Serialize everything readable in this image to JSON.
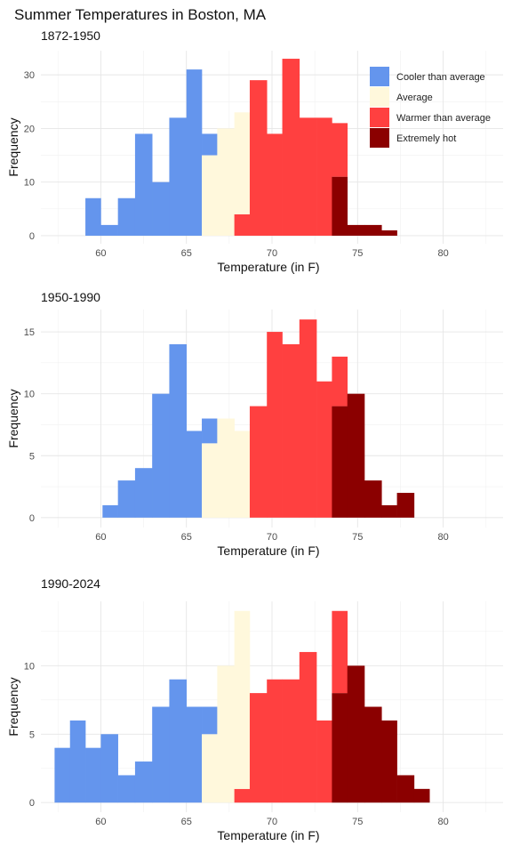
{
  "title": "Summer Temperatures in Boston, MA",
  "colors": {
    "cooler": "#6495ED",
    "average": "#FFF8DC",
    "warmer": "#FF4040",
    "hot": "#8B0000"
  },
  "chart_data": [
    {
      "type": "histogram",
      "subtitle": "1872-1950",
      "xlabel": "Temperature (in F)",
      "ylabel": "Frequency",
      "xlim": [
        56.5,
        83.5
      ],
      "ylim": [
        -1.5,
        34.5
      ],
      "xticks": [
        60,
        65,
        70,
        75,
        80
      ],
      "yticks": [
        0,
        10,
        20,
        30
      ],
      "grid": true,
      "legend": {
        "position": "top-right",
        "entries": [
          {
            "label": "Cooler than average",
            "category": "cooler"
          },
          {
            "label": "Average",
            "category": "average"
          },
          {
            "label": "Warmer than average",
            "category": "warmer"
          },
          {
            "label": "Extremely hot",
            "category": "hot"
          }
        ]
      },
      "bars": [
        {
          "x0": 59.1,
          "x1": 60.0,
          "count": 7,
          "category": "cooler"
        },
        {
          "x0": 60.0,
          "x1": 61.0,
          "count": 2,
          "category": "cooler"
        },
        {
          "x0": 61.0,
          "x1": 62.0,
          "count": 7,
          "category": "cooler"
        },
        {
          "x0": 62.0,
          "x1": 63.0,
          "count": 19,
          "category": "cooler"
        },
        {
          "x0": 63.0,
          "x1": 64.0,
          "count": 10,
          "category": "cooler"
        },
        {
          "x0": 64.0,
          "x1": 65.0,
          "count": 22,
          "category": "cooler"
        },
        {
          "x0": 65.0,
          "x1": 65.9,
          "count": 31,
          "category": "cooler"
        },
        {
          "x0": 65.9,
          "x1": 66.8,
          "count": 15,
          "category": "average"
        },
        {
          "x0": 65.9,
          "x1": 66.8,
          "count": 4,
          "base": 15,
          "category": "cooler"
        },
        {
          "x0": 66.8,
          "x1": 67.8,
          "count": 20,
          "category": "average"
        },
        {
          "x0": 67.8,
          "x1": 68.7,
          "count": 4,
          "category": "warmer"
        },
        {
          "x0": 67.8,
          "x1": 68.7,
          "count": 19,
          "base": 4,
          "category": "average"
        },
        {
          "x0": 68.7,
          "x1": 69.7,
          "count": 29,
          "category": "warmer"
        },
        {
          "x0": 69.7,
          "x1": 70.6,
          "count": 19,
          "category": "warmer"
        },
        {
          "x0": 70.6,
          "x1": 71.6,
          "count": 33,
          "category": "warmer"
        },
        {
          "x0": 71.6,
          "x1": 72.6,
          "count": 22,
          "category": "warmer"
        },
        {
          "x0": 72.6,
          "x1": 73.5,
          "count": 22,
          "category": "warmer"
        },
        {
          "x0": 73.5,
          "x1": 74.4,
          "count": 11,
          "category": "hot"
        },
        {
          "x0": 73.5,
          "x1": 74.4,
          "count": 10,
          "base": 11,
          "category": "warmer"
        },
        {
          "x0": 74.4,
          "x1": 75.4,
          "count": 2,
          "category": "hot"
        },
        {
          "x0": 75.4,
          "x1": 76.4,
          "count": 2,
          "category": "hot"
        },
        {
          "x0": 76.4,
          "x1": 77.3,
          "count": 1,
          "category": "hot"
        }
      ]
    },
    {
      "type": "histogram",
      "subtitle": "1950-1990",
      "xlabel": "Temperature (in F)",
      "ylabel": "Frequency",
      "xlim": [
        56.5,
        83.5
      ],
      "ylim": [
        -0.8,
        16.8
      ],
      "xticks": [
        60,
        65,
        70,
        75,
        80
      ],
      "yticks": [
        0,
        5,
        10,
        15
      ],
      "grid": true,
      "bars": [
        {
          "x0": 60.1,
          "x1": 61.0,
          "count": 1,
          "category": "cooler"
        },
        {
          "x0": 61.0,
          "x1": 62.0,
          "count": 3,
          "category": "cooler"
        },
        {
          "x0": 62.0,
          "x1": 63.0,
          "count": 4,
          "category": "cooler"
        },
        {
          "x0": 63.0,
          "x1": 64.0,
          "count": 10,
          "category": "cooler"
        },
        {
          "x0": 64.0,
          "x1": 65.0,
          "count": 14,
          "category": "cooler"
        },
        {
          "x0": 65.0,
          "x1": 65.9,
          "count": 7,
          "category": "cooler"
        },
        {
          "x0": 65.9,
          "x1": 66.8,
          "count": 6,
          "category": "average"
        },
        {
          "x0": 65.9,
          "x1": 66.8,
          "count": 2,
          "base": 6,
          "category": "cooler"
        },
        {
          "x0": 66.8,
          "x1": 67.8,
          "count": 8,
          "category": "average"
        },
        {
          "x0": 67.8,
          "x1": 68.7,
          "count": 7,
          "category": "average"
        },
        {
          "x0": 68.7,
          "x1": 69.7,
          "count": 9,
          "category": "warmer"
        },
        {
          "x0": 69.7,
          "x1": 70.6,
          "count": 15,
          "category": "warmer"
        },
        {
          "x0": 70.6,
          "x1": 71.6,
          "count": 14,
          "category": "warmer"
        },
        {
          "x0": 71.6,
          "x1": 72.6,
          "count": 16,
          "category": "warmer"
        },
        {
          "x0": 72.6,
          "x1": 73.5,
          "count": 11,
          "category": "warmer"
        },
        {
          "x0": 73.5,
          "x1": 74.4,
          "count": 9,
          "category": "hot"
        },
        {
          "x0": 73.5,
          "x1": 74.4,
          "count": 4,
          "base": 9,
          "category": "warmer"
        },
        {
          "x0": 74.4,
          "x1": 75.4,
          "count": 10,
          "category": "hot"
        },
        {
          "x0": 75.4,
          "x1": 76.4,
          "count": 3,
          "category": "hot"
        },
        {
          "x0": 76.4,
          "x1": 77.3,
          "count": 1,
          "category": "hot"
        },
        {
          "x0": 77.3,
          "x1": 78.3,
          "count": 2,
          "category": "hot"
        }
      ]
    },
    {
      "type": "histogram",
      "subtitle": "1990-2024",
      "xlabel": "Temperature (in F)",
      "ylabel": "Frequency",
      "xlim": [
        56.5,
        83.5
      ],
      "ylim": [
        -0.7,
        14.7
      ],
      "xticks": [
        60,
        65,
        70,
        75,
        80
      ],
      "yticks": [
        0,
        5,
        10
      ],
      "grid": true,
      "bars": [
        {
          "x0": 57.3,
          "x1": 58.2,
          "count": 4,
          "category": "cooler"
        },
        {
          "x0": 58.2,
          "x1": 59.1,
          "count": 6,
          "category": "cooler"
        },
        {
          "x0": 59.1,
          "x1": 60.0,
          "count": 4,
          "category": "cooler"
        },
        {
          "x0": 60.0,
          "x1": 61.0,
          "count": 5,
          "category": "cooler"
        },
        {
          "x0": 61.0,
          "x1": 62.0,
          "count": 2,
          "category": "cooler"
        },
        {
          "x0": 62.0,
          "x1": 63.0,
          "count": 3,
          "category": "cooler"
        },
        {
          "x0": 63.0,
          "x1": 64.0,
          "count": 7,
          "category": "cooler"
        },
        {
          "x0": 64.0,
          "x1": 65.0,
          "count": 9,
          "category": "cooler"
        },
        {
          "x0": 65.0,
          "x1": 65.9,
          "count": 7,
          "category": "cooler"
        },
        {
          "x0": 65.9,
          "x1": 66.8,
          "count": 5,
          "category": "average"
        },
        {
          "x0": 65.9,
          "x1": 66.8,
          "count": 2,
          "base": 5,
          "category": "cooler"
        },
        {
          "x0": 66.8,
          "x1": 67.8,
          "count": 10,
          "category": "average"
        },
        {
          "x0": 67.8,
          "x1": 68.7,
          "count": 1,
          "category": "warmer"
        },
        {
          "x0": 67.8,
          "x1": 68.7,
          "count": 13,
          "base": 1,
          "category": "average"
        },
        {
          "x0": 68.7,
          "x1": 69.7,
          "count": 8,
          "category": "warmer"
        },
        {
          "x0": 69.7,
          "x1": 70.6,
          "count": 9,
          "category": "warmer"
        },
        {
          "x0": 70.6,
          "x1": 71.6,
          "count": 9,
          "category": "warmer"
        },
        {
          "x0": 71.6,
          "x1": 72.6,
          "count": 11,
          "category": "warmer"
        },
        {
          "x0": 72.6,
          "x1": 73.5,
          "count": 6,
          "category": "warmer"
        },
        {
          "x0": 73.5,
          "x1": 74.4,
          "count": 8,
          "category": "hot"
        },
        {
          "x0": 73.5,
          "x1": 74.4,
          "count": 6,
          "base": 8,
          "category": "warmer"
        },
        {
          "x0": 74.4,
          "x1": 75.4,
          "count": 10,
          "category": "hot"
        },
        {
          "x0": 75.4,
          "x1": 76.4,
          "count": 7,
          "category": "hot"
        },
        {
          "x0": 76.4,
          "x1": 77.3,
          "count": 6,
          "category": "hot"
        },
        {
          "x0": 77.3,
          "x1": 78.3,
          "count": 2,
          "category": "hot"
        },
        {
          "x0": 78.3,
          "x1": 79.2,
          "count": 1,
          "category": "hot"
        }
      ]
    }
  ]
}
